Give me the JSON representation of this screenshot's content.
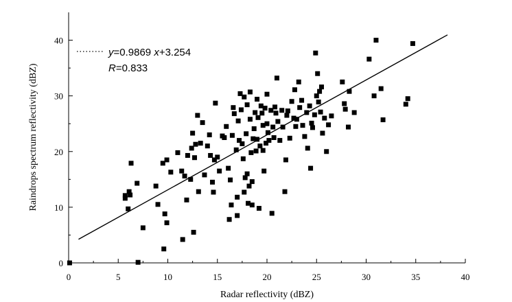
{
  "chart_data": {
    "type": "scatter",
    "xlabel": "Radar reflectivity (dBZ)",
    "ylabel": "Raindrops spectrum reflectivity (dBZ)",
    "xlim": [
      0,
      40
    ],
    "ylim": [
      0,
      45
    ],
    "xticks": [
      "0",
      "5",
      "10",
      "15",
      "20",
      "25",
      "30",
      "35",
      "40"
    ],
    "yticks": [
      "0",
      "10",
      "20",
      "30",
      "40"
    ],
    "grid": false,
    "legend_position": "top-left",
    "fit": {
      "slope": 0.9869,
      "intercept": 3.254,
      "x_range": [
        1,
        38.2
      ],
      "equation": {
        "y": "y",
        "eq": "=0.9869 ",
        "x": "x",
        "rest": "+3.254"
      },
      "r_label": {
        "r": "R",
        "rest": "=0.833"
      }
    },
    "series": [
      {
        "marker": "square",
        "points": [
          [
            0.1,
            0.0
          ],
          [
            7.0,
            0.1
          ],
          [
            5.7,
            11.6
          ],
          [
            5.7,
            12.1
          ],
          [
            6.0,
            9.7
          ],
          [
            6.1,
            12.8
          ],
          [
            6.2,
            12.2
          ],
          [
            6.3,
            17.9
          ],
          [
            6.9,
            14.3
          ],
          [
            7.5,
            6.3
          ],
          [
            8.8,
            13.8
          ],
          [
            9.0,
            10.5
          ],
          [
            9.5,
            17.9
          ],
          [
            9.6,
            2.5
          ],
          [
            9.7,
            8.8
          ],
          [
            9.9,
            7.2
          ],
          [
            9.9,
            18.5
          ],
          [
            10.3,
            16.3
          ],
          [
            11.0,
            19.8
          ],
          [
            11.4,
            16.5
          ],
          [
            11.5,
            4.2
          ],
          [
            11.7,
            15.6
          ],
          [
            11.9,
            11.3
          ],
          [
            12.0,
            19.3
          ],
          [
            12.3,
            15.0
          ],
          [
            12.4,
            20.6
          ],
          [
            12.5,
            23.3
          ],
          [
            12.7,
            18.9
          ],
          [
            12.6,
            5.5
          ],
          [
            12.8,
            21.3
          ],
          [
            13.0,
            26.5
          ],
          [
            13.1,
            12.8
          ],
          [
            13.3,
            21.5
          ],
          [
            13.5,
            25.2
          ],
          [
            13.7,
            15.8
          ],
          [
            14.0,
            21.0
          ],
          [
            14.2,
            23.0
          ],
          [
            14.3,
            19.3
          ],
          [
            14.5,
            14.5
          ],
          [
            14.6,
            12.7
          ],
          [
            14.7,
            18.5
          ],
          [
            14.8,
            28.7
          ],
          [
            15.0,
            19.0
          ],
          [
            15.2,
            16.5
          ],
          [
            15.5,
            22.8
          ],
          [
            15.7,
            22.5
          ],
          [
            15.9,
            24.5
          ],
          [
            16.1,
            17.0
          ],
          [
            16.2,
            7.8
          ],
          [
            16.3,
            14.9
          ],
          [
            16.4,
            10.4
          ],
          [
            16.5,
            22.9
          ],
          [
            16.6,
            27.9
          ],
          [
            16.7,
            26.8
          ],
          [
            16.9,
            20.3
          ],
          [
            17.0,
            11.8
          ],
          [
            17.1,
            25.5
          ],
          [
            17.0,
            8.5
          ],
          [
            17.2,
            22.0
          ],
          [
            17.3,
            30.4
          ],
          [
            17.4,
            27.5
          ],
          [
            17.5,
            21.4
          ],
          [
            17.6,
            18.7
          ],
          [
            17.7,
            29.8
          ],
          [
            17.7,
            12.7
          ],
          [
            17.8,
            15.3
          ],
          [
            17.9,
            23.2
          ],
          [
            18.0,
            28.4
          ],
          [
            18.0,
            16.0
          ],
          [
            18.1,
            10.7
          ],
          [
            18.2,
            13.8
          ],
          [
            18.3,
            30.7
          ],
          [
            18.3,
            25.8
          ],
          [
            18.4,
            19.8
          ],
          [
            18.5,
            14.6
          ],
          [
            18.5,
            10.4
          ],
          [
            18.6,
            22.3
          ],
          [
            18.7,
            24.1
          ],
          [
            18.8,
            27.0
          ],
          [
            18.9,
            20.1
          ],
          [
            19.0,
            22.2
          ],
          [
            19.0,
            29.4
          ],
          [
            19.1,
            26.1
          ],
          [
            19.2,
            9.8
          ],
          [
            19.3,
            21.0
          ],
          [
            19.4,
            28.2
          ],
          [
            19.5,
            26.9
          ],
          [
            19.6,
            24.7
          ],
          [
            19.6,
            20.2
          ],
          [
            19.7,
            16.5
          ],
          [
            19.8,
            27.8
          ],
          [
            19.9,
            21.5
          ],
          [
            20.0,
            25.0
          ],
          [
            20.0,
            30.3
          ],
          [
            20.1,
            23.4
          ],
          [
            20.2,
            22.0
          ],
          [
            20.4,
            27.4
          ],
          [
            20.5,
            8.9
          ],
          [
            20.6,
            24.4
          ],
          [
            20.7,
            22.5
          ],
          [
            20.8,
            28.0
          ],
          [
            20.9,
            26.9
          ],
          [
            21.0,
            33.2
          ],
          [
            21.1,
            25.4
          ],
          [
            21.3,
            22.0
          ],
          [
            21.5,
            27.4
          ],
          [
            21.6,
            24.4
          ],
          [
            21.8,
            12.8
          ],
          [
            21.9,
            18.5
          ],
          [
            22.0,
            26.5
          ],
          [
            22.1,
            27.3
          ],
          [
            22.3,
            22.4
          ],
          [
            22.5,
            29.0
          ],
          [
            22.7,
            26.0
          ],
          [
            22.8,
            31.1
          ],
          [
            22.9,
            24.5
          ],
          [
            23.0,
            25.8
          ],
          [
            23.2,
            32.5
          ],
          [
            23.3,
            27.9
          ],
          [
            23.5,
            29.2
          ],
          [
            23.6,
            24.7
          ],
          [
            23.8,
            22.7
          ],
          [
            24.0,
            27.0
          ],
          [
            24.1,
            20.6
          ],
          [
            24.3,
            28.2
          ],
          [
            24.4,
            17.0
          ],
          [
            24.5,
            25.1
          ],
          [
            24.6,
            24.3
          ],
          [
            24.8,
            26.6
          ],
          [
            24.9,
            37.7
          ],
          [
            25.0,
            30.0
          ],
          [
            25.1,
            34.0
          ],
          [
            25.2,
            28.9
          ],
          [
            25.3,
            30.8
          ],
          [
            25.4,
            27.1
          ],
          [
            25.5,
            31.6
          ],
          [
            25.6,
            23.3
          ],
          [
            25.8,
            26.0
          ],
          [
            26.0,
            20.0
          ],
          [
            26.2,
            24.8
          ],
          [
            26.5,
            26.4
          ],
          [
            27.6,
            32.5
          ],
          [
            27.8,
            28.6
          ],
          [
            27.9,
            27.6
          ],
          [
            28.2,
            24.4
          ],
          [
            28.3,
            30.8
          ],
          [
            28.8,
            27.0
          ],
          [
            30.3,
            36.6
          ],
          [
            30.8,
            30.0
          ],
          [
            31.0,
            40.0
          ],
          [
            31.5,
            31.3
          ],
          [
            31.7,
            25.7
          ],
          [
            34.0,
            28.5
          ],
          [
            34.2,
            29.5
          ],
          [
            34.7,
            39.4
          ]
        ]
      }
    ]
  }
}
